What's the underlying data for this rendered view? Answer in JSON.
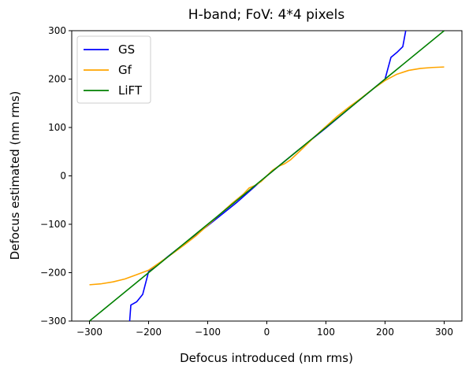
{
  "chart_data": {
    "type": "line",
    "title": "H-band; FoV: 4*4 pixels",
    "xlabel": "Defocus introduced (nm rms)",
    "ylabel": "Defocus estimated (nm rms)",
    "xlim": [
      -330,
      330
    ],
    "ylim": [
      -300,
      300
    ],
    "xticks": [
      -300,
      -200,
      -100,
      0,
      100,
      200,
      300
    ],
    "yticks": [
      -300,
      -200,
      -100,
      0,
      100,
      200,
      300
    ],
    "xtick_labels": [
      "−300",
      "−200",
      "−100",
      "0",
      "100",
      "200",
      "300"
    ],
    "ytick_labels": [
      "−300",
      "−200",
      "−100",
      "0",
      "100",
      "200",
      "300"
    ],
    "grid": false,
    "legend_position": "top-left",
    "series": [
      {
        "name": "GS",
        "color": "#0000ff",
        "x": [
          -235,
          -232,
          -230,
          -220,
          -210,
          -200,
          -150,
          -100,
          -50,
          0,
          50,
          100,
          150,
          200,
          210,
          220,
          230,
          235
        ],
        "y": [
          -320,
          -300,
          -267,
          -260,
          -245,
          -198,
          -150,
          -103,
          -54,
          0,
          50,
          99,
          150,
          200,
          245,
          255,
          267,
          300
        ]
      },
      {
        "name": "Gf",
        "color": "#ffa500",
        "x": [
          -300,
          -280,
          -260,
          -240,
          -220,
          -200,
          -180,
          -160,
          -140,
          -120,
          -100,
          -80,
          -60,
          -40,
          -30,
          -20,
          -10,
          0,
          10,
          20,
          30,
          40,
          60,
          80,
          100,
          120,
          140,
          160,
          180,
          200,
          220,
          240,
          260,
          280,
          300
        ],
        "y": [
          -225,
          -223,
          -219,
          -213,
          -204,
          -195,
          -178,
          -161,
          -143,
          -124,
          -102,
          -80,
          -58,
          -38,
          -25,
          -20,
          -12,
          0,
          12,
          20,
          25,
          33,
          56,
          80,
          102,
          124,
          143,
          161,
          180,
          197,
          210,
          218,
          222,
          224,
          225
        ]
      },
      {
        "name": "LiFT",
        "color": "#008000",
        "x": [
          -300,
          -200,
          -100,
          0,
          100,
          200,
          300
        ],
        "y": [
          -300,
          -200,
          -100,
          0,
          100,
          200,
          300
        ]
      }
    ]
  }
}
